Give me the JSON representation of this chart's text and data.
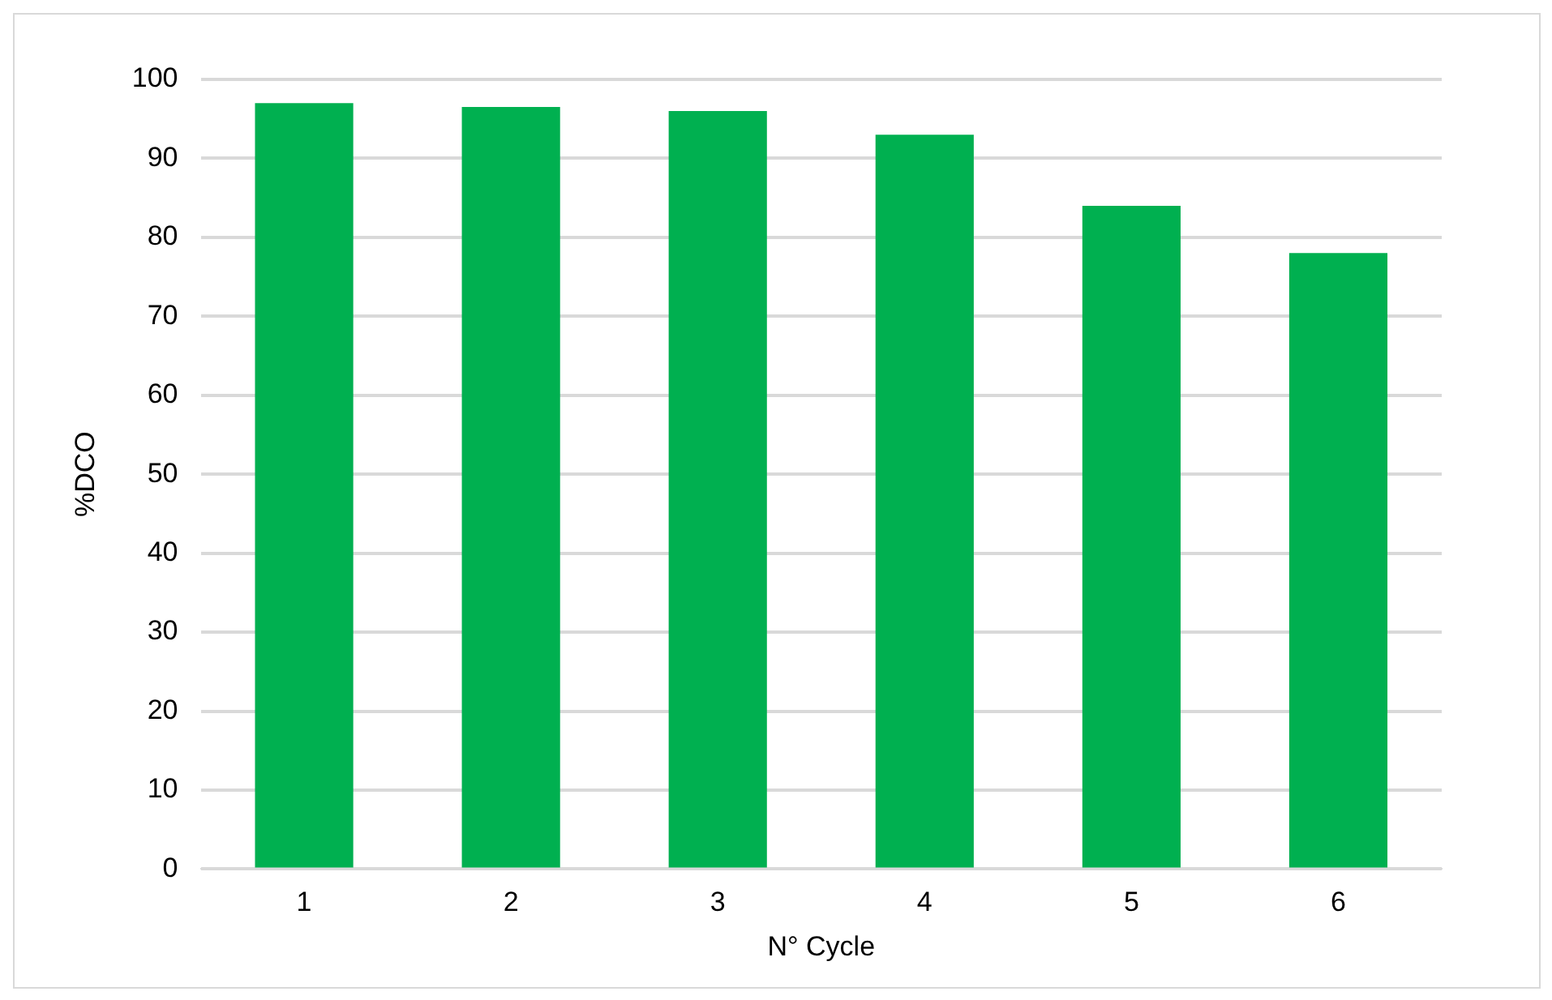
{
  "chart_data": {
    "type": "bar",
    "xlabel": "N° Cycle",
    "ylabel": "%DCO",
    "categories": [
      "1",
      "2",
      "3",
      "4",
      "5",
      "6"
    ],
    "values": [
      97,
      96.5,
      96,
      93,
      84,
      78
    ],
    "color": "#00b050",
    "ylim": [
      0,
      100
    ],
    "yticks": [
      0,
      10,
      20,
      30,
      40,
      50,
      60,
      70,
      80,
      90,
      100
    ],
    "grid": "y",
    "legend": false
  }
}
